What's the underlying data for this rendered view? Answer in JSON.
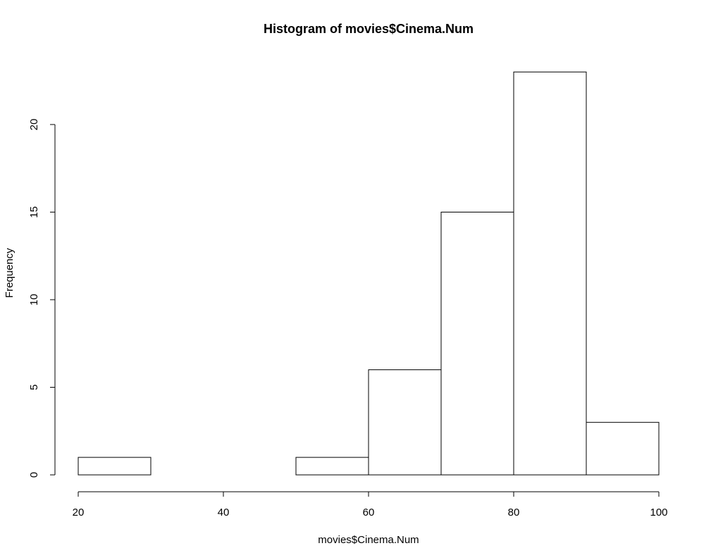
{
  "chart_data": {
    "type": "bar",
    "title": "Histogram of movies$Cinema.Num",
    "xlabel": "movies$Cinema.Num",
    "ylabel": "Frequency",
    "bins": [
      {
        "start": 20,
        "end": 30,
        "count": 1
      },
      {
        "start": 30,
        "end": 40,
        "count": 0
      },
      {
        "start": 40,
        "end": 50,
        "count": 0
      },
      {
        "start": 50,
        "end": 60,
        "count": 1
      },
      {
        "start": 60,
        "end": 70,
        "count": 6
      },
      {
        "start": 70,
        "end": 80,
        "count": 15
      },
      {
        "start": 80,
        "end": 90,
        "count": 23
      },
      {
        "start": 90,
        "end": 100,
        "count": 3
      }
    ],
    "xlim": [
      20,
      100
    ],
    "ylim": [
      0,
      23
    ],
    "xticks": [
      20,
      40,
      60,
      80,
      100
    ],
    "yticks": [
      0,
      5,
      10,
      15,
      20
    ],
    "grid": false
  }
}
